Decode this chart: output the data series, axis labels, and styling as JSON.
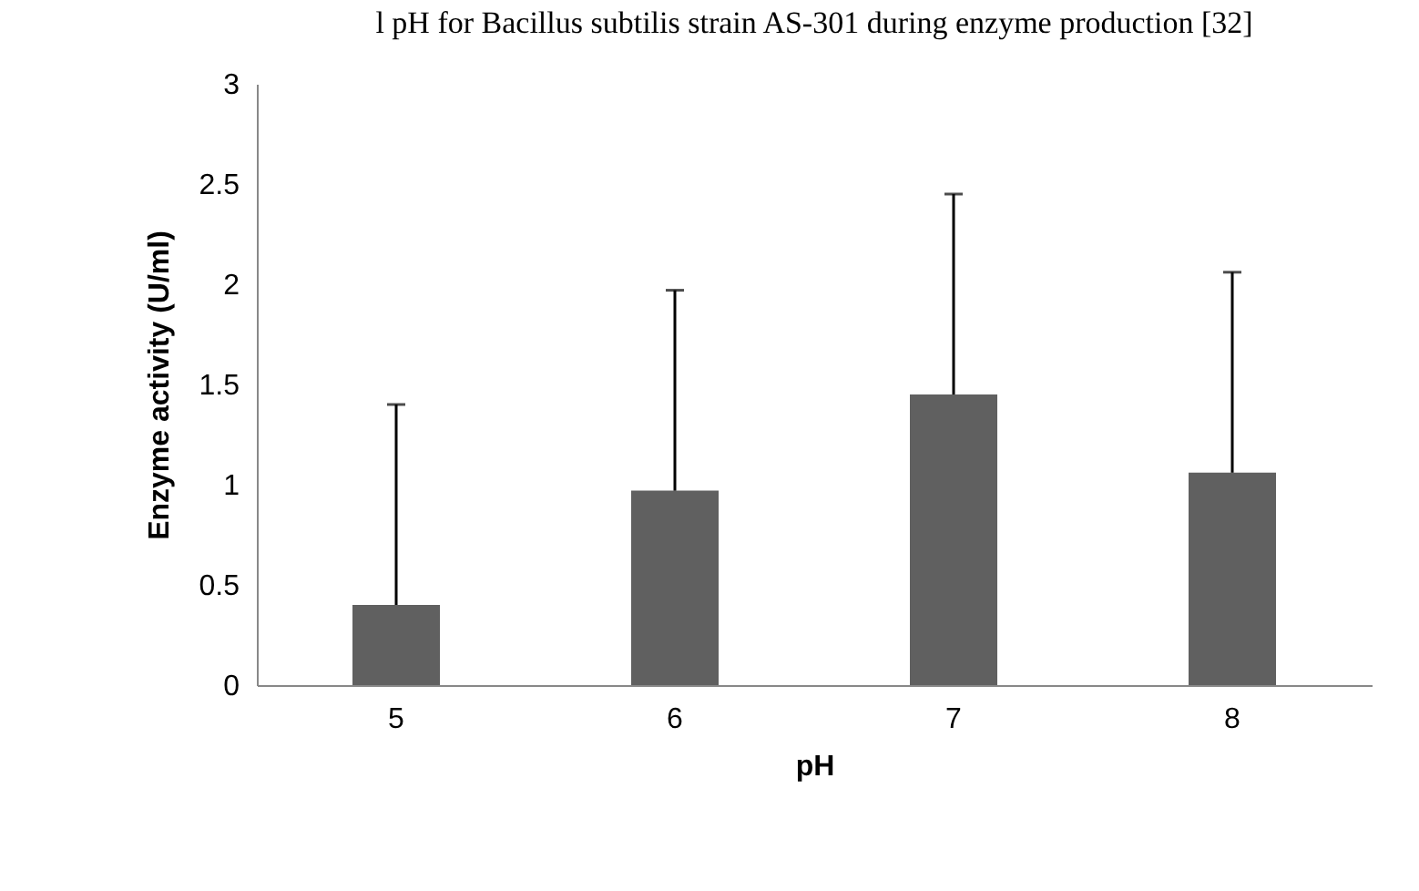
{
  "chart_data": {
    "type": "bar",
    "title": "l pH for Bacillus subtilis strain AS-301 during enzyme production [32]",
    "xlabel": "pH",
    "ylabel": "Enzyme activity (U/ml)",
    "categories": [
      "5",
      "6",
      "7",
      "8"
    ],
    "values": [
      0.4,
      0.97,
      1.45,
      1.06
    ],
    "errors": [
      [
        0.4,
        1.4
      ],
      [
        0.97,
        1.97
      ],
      [
        1.45,
        2.45
      ],
      [
        1.06,
        2.06
      ]
    ],
    "color": "#606060",
    "ylim": [
      0,
      3
    ],
    "yticks": [
      0,
      0.5,
      1,
      1.5,
      2,
      2.5,
      3
    ],
    "grid": false
  }
}
